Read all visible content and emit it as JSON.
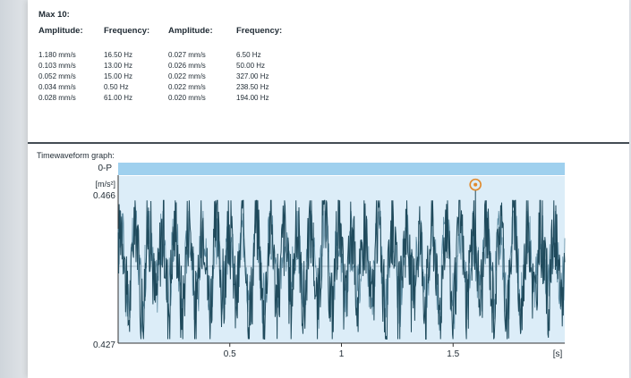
{
  "report": {
    "max_title": "Max 10:",
    "headers": [
      "Amplitude:",
      "Frequency:",
      "Amplitude:",
      "Frequency:"
    ],
    "rows": [
      [
        "1.180 mm/s",
        "16.50 Hz",
        "0.027 mm/s",
        "6.50 Hz"
      ],
      [
        "0.103 mm/s",
        "13.00 Hz",
        "0.026 mm/s",
        "50.00 Hz"
      ],
      [
        "0.052 mm/s",
        "15.00 Hz",
        "0.022 mm/s",
        "327.00 Hz"
      ],
      [
        "0.034 mm/s",
        "0.50 Hz",
        "0.022 mm/s",
        "238.50 Hz"
      ],
      [
        "0.028 mm/s",
        "61.00 Hz",
        "0.020 mm/s",
        "194.00 Hz"
      ]
    ]
  },
  "graph": {
    "title": "Timewaveform graph:",
    "header_label": "0-P",
    "unit_label": "[m/s²]",
    "y_top_label": "0.466",
    "y_bottom_label": "0.427",
    "x_unit_label": "[s]",
    "x_ticks": [
      {
        "value": 0.5,
        "label": "0.5"
      },
      {
        "value": 1.0,
        "label": "1"
      },
      {
        "value": 1.5,
        "label": "1.5"
      }
    ],
    "colors": {
      "plot_bg": "#dcedf8",
      "header_bar": "#9fd0ee",
      "waveform": "#1f4a5c",
      "marker": "#e08a2e"
    }
  },
  "chart_data": {
    "type": "line",
    "title": "Timewaveform graph:",
    "ylabel": "[m/s²]",
    "xlabel": "[s]",
    "xlim": [
      0,
      2.0
    ],
    "ylim": [
      -0.427,
      0.466
    ],
    "y_tick_labels": [
      "0.466",
      "0.427"
    ],
    "x_tick_labels": [
      "0.5",
      "1",
      "1.5"
    ],
    "peak_marker": {
      "x": 1.6,
      "y": 0.42
    },
    "grid": false
  }
}
